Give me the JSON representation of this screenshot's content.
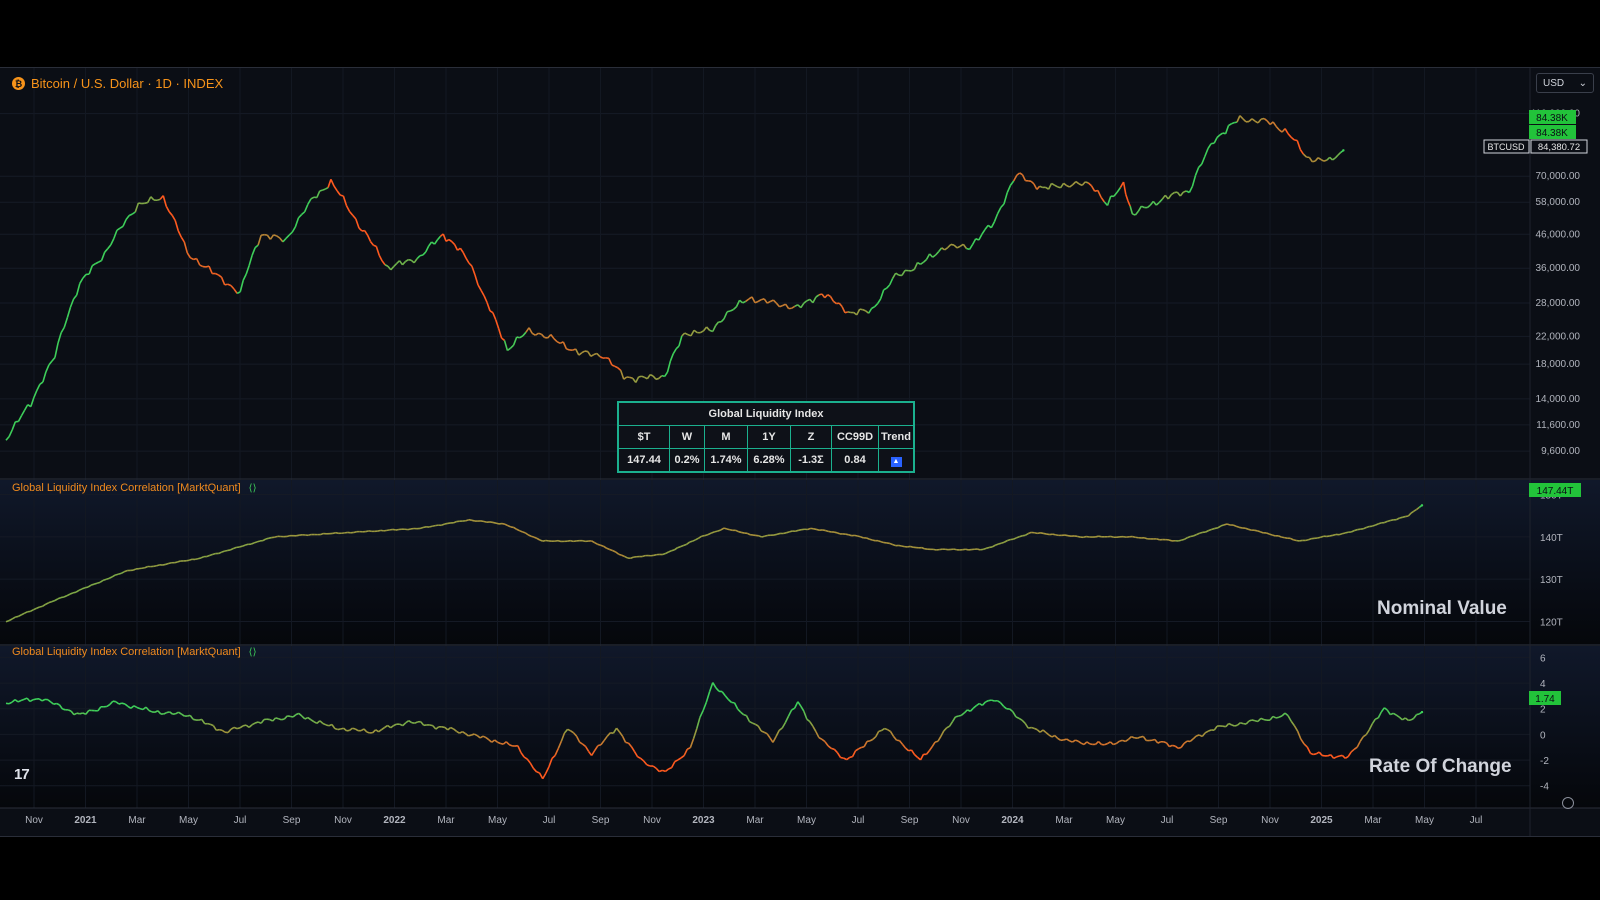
{
  "header": {
    "title": "Bitcoin / U.S. Dollar · 1D · INDEX",
    "coin_glyph": "₿",
    "currency": "USD"
  },
  "colors": {
    "bull": "#3ecf5a",
    "bear": "#ff5a1f",
    "background": "#0b0e15",
    "table_border": "#1bb08e",
    "price_badge_green": "#22c33a"
  },
  "price_badges": {
    "last_a": "84.38K",
    "last_b": "84.38K",
    "symbol": "BTCUSD",
    "price": "84,380.72"
  },
  "price_axis": {
    "ticks": [
      "110,000.00",
      "70,000.00",
      "58,000.00",
      "46,000.00",
      "36,000.00",
      "28,000.00",
      "22,000.00",
      "18,000.00",
      "14,000.00",
      "11,600.00",
      "9,600.00"
    ],
    "tick_values": [
      110000,
      70000,
      58000,
      46000,
      36000,
      28000,
      22000,
      18000,
      14000,
      11600,
      9600
    ]
  },
  "liquidity_table": {
    "title": "Global Liquidity Index",
    "headers": [
      "$T",
      "W",
      "M",
      "1Y",
      "Z",
      "CC99D",
      "Trend"
    ],
    "values": [
      "147.44",
      "0.2%",
      "1.74%",
      "6.28%",
      "-1.3Σ",
      "0.84"
    ],
    "trend_glyph": "▲"
  },
  "nominal_pane": {
    "label": "Global Liquidity Index Correlation [MarktQuant]",
    "settings_glyph": "⟨⟩",
    "caption": "Nominal Value",
    "ticks": [
      "150T",
      "140T",
      "130T",
      "120T"
    ],
    "tick_values": [
      150,
      140,
      130,
      120
    ],
    "last_badge": "147.44T"
  },
  "roc_pane": {
    "label": "Global Liquidity Index Correlation [MarktQuant]",
    "settings_glyph": "⟨⟩",
    "caption": "Rate Of Change",
    "ticks": [
      "6",
      "4",
      "2",
      "0",
      "-2",
      "-4"
    ],
    "tick_values": [
      6,
      4,
      2,
      0,
      -2,
      -4
    ],
    "last_badge": "1.74"
  },
  "x_axis": {
    "labels": [
      "Nov",
      "2021",
      "Mar",
      "May",
      "Jul",
      "Sep",
      "Nov",
      "2022",
      "Mar",
      "May",
      "Jul",
      "Sep",
      "Nov",
      "2023",
      "Mar",
      "May",
      "Jul",
      "Sep",
      "Nov",
      "2024",
      "Mar",
      "May",
      "Jul",
      "Sep",
      "Nov",
      "2025",
      "Mar",
      "May",
      "Jul"
    ],
    "bold": [
      "2021",
      "2022",
      "2023",
      "2024",
      "2025"
    ]
  },
  "logo_text": "17",
  "chart_data": [
    {
      "type": "line",
      "series": [
        {
          "name": "BTCUSD",
          "x": [
            "2020-10-01",
            "2020-11-01",
            "2020-12-01",
            "2021-01-01",
            "2021-02-01",
            "2021-03-15",
            "2021-04-15",
            "2021-05-15",
            "2021-06-15",
            "2021-07-20",
            "2021-08-15",
            "2021-09-15",
            "2021-10-20",
            "2021-11-10",
            "2021-12-15",
            "2022-01-20",
            "2022-03-01",
            "2022-03-30",
            "2022-05-01",
            "2022-05-20",
            "2022-06-18",
            "2022-07-15",
            "2022-08-15",
            "2022-09-15",
            "2022-10-15",
            "2022-11-10",
            "2022-11-25",
            "2022-12-31",
            "2023-01-25",
            "2023-03-01",
            "2023-03-15",
            "2023-04-15",
            "2023-06-15",
            "2023-07-15",
            "2023-08-20",
            "2023-09-15",
            "2023-10-15",
            "2023-11-15",
            "2023-12-15",
            "2024-01-15",
            "2024-02-15",
            "2024-03-14",
            "2024-04-15",
            "2024-05-15",
            "2024-06-15",
            "2024-07-05",
            "2024-07-25",
            "2024-08-05",
            "2024-09-15",
            "2024-10-15",
            "2024-11-15",
            "2024-12-17",
            "2025-01-20",
            "2025-02-15",
            "2025-03-10",
            "2025-04-08",
            "2025-04-25"
          ],
          "values": [
            10500,
            13500,
            19000,
            32000,
            40000,
            57000,
            60000,
            40000,
            35000,
            30000,
            46000,
            44000,
            60000,
            67000,
            49000,
            36000,
            39000,
            46000,
            38000,
            29000,
            20000,
            23000,
            21500,
            19500,
            19200,
            16500,
            16200,
            16500,
            22500,
            23000,
            25500,
            29000,
            27000,
            30000,
            26000,
            26500,
            34000,
            37000,
            42000,
            42000,
            50000,
            71000,
            64000,
            66000,
            66000,
            57000,
            66000,
            53000,
            60000,
            63000,
            91000,
            106000,
            104000,
            96000,
            80000,
            78000,
            84380
          ]
        }
      ],
      "y_scale": "log",
      "ylim": [
        9000,
        125000
      ]
    },
    {
      "type": "line",
      "series": [
        {
          "name": "Global Liquidity Index Correlation [MarktQuant]",
          "x": [
            "2020-10-01",
            "2020-12-01",
            "2021-03-01",
            "2021-06-01",
            "2021-09-01",
            "2021-12-01",
            "2022-03-01",
            "2022-05-01",
            "2022-06-15",
            "2022-08-01",
            "2022-10-01",
            "2022-11-15",
            "2023-01-01",
            "2023-02-15",
            "2023-03-15",
            "2023-05-01",
            "2023-07-01",
            "2023-09-01",
            "2023-10-15",
            "2023-12-01",
            "2024-02-01",
            "2024-04-01",
            "2024-06-01",
            "2024-08-01",
            "2024-10-01",
            "2024-12-01",
            "2025-01-15",
            "2025-03-01",
            "2025-05-01",
            "2025-07-15",
            "2025-08-01"
          ],
          "values": [
            120,
            125,
            132,
            135,
            140,
            141,
            142,
            144,
            143,
            139,
            139,
            135,
            136,
            140,
            142,
            140,
            142,
            140,
            138,
            137,
            137,
            141,
            140,
            140,
            139,
            143,
            141,
            139,
            141,
            145,
            147.44
          ]
        }
      ],
      "ylim": [
        118,
        152
      ]
    },
    {
      "type": "line",
      "series": [
        {
          "name": "Global Liquidity Index Correlation [MarktQuant]",
          "x": [
            "2020-10-01",
            "2020-11-15",
            "2021-01-01",
            "2021-02-15",
            "2021-04-01",
            "2021-05-15",
            "2021-07-01",
            "2021-08-15",
            "2021-10-01",
            "2021-11-15",
            "2022-01-01",
            "2022-02-15",
            "2022-04-01",
            "2022-05-15",
            "2022-07-01",
            "2022-08-01",
            "2022-09-01",
            "2022-10-01",
            "2022-11-01",
            "2022-12-01",
            "2023-01-01",
            "2023-02-01",
            "2023-03-01",
            "2023-04-01",
            "2023-05-15",
            "2023-06-15",
            "2023-07-15",
            "2023-08-15",
            "2023-10-01",
            "2023-11-15",
            "2024-01-01",
            "2024-02-15",
            "2024-04-01",
            "2024-05-15",
            "2024-07-01",
            "2024-08-15",
            "2024-10-01",
            "2024-11-15",
            "2025-01-01",
            "2025-02-15",
            "2025-03-15",
            "2025-05-01",
            "2025-06-15",
            "2025-07-15",
            "2025-08-01"
          ],
          "values": [
            2.5,
            2.8,
            1.5,
            2.5,
            1.8,
            1.5,
            0.2,
            1.0,
            1.5,
            0.5,
            0.2,
            1.0,
            0.5,
            -0.2,
            -1.0,
            -3.5,
            0.5,
            -1.5,
            0.5,
            -2.0,
            -3.0,
            -1.0,
            4.0,
            2.0,
            -0.5,
            2.5,
            -0.5,
            -2.0,
            0.5,
            -2.0,
            1.5,
            2.8,
            0.5,
            -0.5,
            -0.8,
            -0.2,
            -1.0,
            0.5,
            1.0,
            1.5,
            -1.5,
            -1.8,
            2.0,
            1.0,
            1.74
          ]
        }
      ],
      "ylim": [
        -4.8,
        6.5
      ]
    }
  ]
}
